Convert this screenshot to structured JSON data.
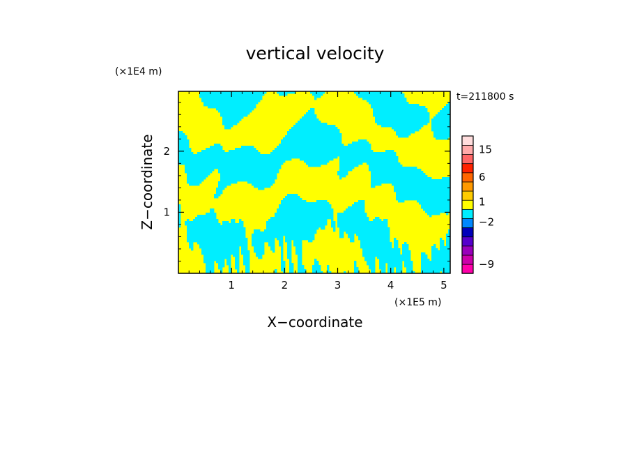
{
  "chart_data": {
    "type": "heatmap",
    "title": "vertical velocity",
    "xlabel": "X−coordinate",
    "ylabel": "Z−coordinate",
    "x_unit": "(×1E5 m)",
    "y_unit": "(×1E4 m)",
    "time_label": "t=211800 s",
    "xlim": [
      0,
      5.12
    ],
    "ylim": [
      0,
      2.98
    ],
    "x_ticks": [
      {
        "value": 1,
        "label": "1"
      },
      {
        "value": 2,
        "label": "2"
      },
      {
        "value": 3,
        "label": "3"
      },
      {
        "value": 4,
        "label": "4"
      },
      {
        "value": 5,
        "label": "5"
      }
    ],
    "y_ticks": [
      {
        "value": 1,
        "label": "1"
      },
      {
        "value": 2,
        "label": "2"
      }
    ],
    "field_colors": {
      "positive": "#ffff00",
      "negative": "#00eeff"
    },
    "colorbar": {
      "levels": [
        {
          "color": "#ff00aa"
        },
        {
          "color": "#cc00aa"
        },
        {
          "color": "#9900bb"
        },
        {
          "color": "#5500cc"
        },
        {
          "color": "#0000bb"
        },
        {
          "color": "#0088ff"
        },
        {
          "color": "#00eeff"
        },
        {
          "color": "#ffff00"
        },
        {
          "color": "#ffcc00"
        },
        {
          "color": "#ff9900"
        },
        {
          "color": "#ff6600"
        },
        {
          "color": "#ff2200"
        },
        {
          "color": "#ff6666"
        },
        {
          "color": "#ffaaaa"
        },
        {
          "color": "#ffdddd"
        }
      ],
      "labels": [
        {
          "text": "15",
          "level": 13.5
        },
        {
          "text": "6",
          "level": 10.5
        },
        {
          "text": "1",
          "level": 7.8
        },
        {
          "text": "−2",
          "level": 5.6
        },
        {
          "text": "−9",
          "level": 1.0
        }
      ]
    }
  }
}
